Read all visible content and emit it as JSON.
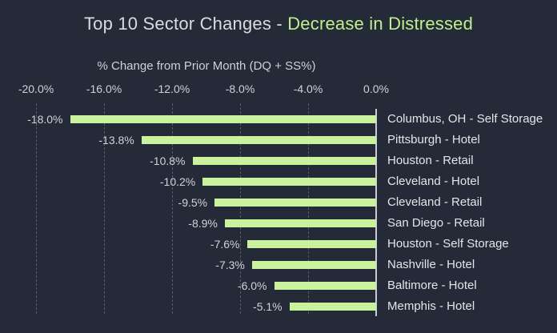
{
  "colors": {
    "background": "#242a37",
    "bar_fill": "#c9f19e",
    "title_text": "#d9dcdf",
    "title_accent": "#bff08c",
    "axis_text": "#cdd2d8",
    "category_text": "#e3e6e9",
    "gridline": "#565d69",
    "zero_axis_line": "#c9ccd1"
  },
  "title": {
    "prefix": "Top 10 Sector Changes - ",
    "accent": "Decrease in Distressed"
  },
  "chart_data": {
    "type": "bar",
    "orientation": "horizontal",
    "title": "Top 10 Sector Changes - Decrease in Distressed",
    "axis_title": "% Change from Prior Month (DQ + SS%)",
    "categories": [
      "Columbus, OH - Self Storage",
      "Pittsburgh - Hotel",
      "Houston - Retail",
      "Cleveland - Hotel",
      "Cleveland - Retail",
      "San Diego - Retail",
      "Houston - Self Storage",
      "Nashville - Hotel",
      "Baltimore - Hotel",
      "Memphis - Hotel"
    ],
    "values": [
      -18.0,
      -13.8,
      -10.8,
      -10.2,
      -9.5,
      -8.9,
      -7.6,
      -7.3,
      -6.0,
      -5.1
    ],
    "value_labels": [
      "-18.0%",
      "-13.8%",
      "-10.8%",
      "-10.2%",
      "-9.5%",
      "-8.9%",
      "-7.6%",
      "-7.3%",
      "-6.0%",
      "-5.1%"
    ],
    "xlim": [
      -20,
      0
    ],
    "ticks": [
      {
        "value": -20,
        "label": "-20.0%"
      },
      {
        "value": -16,
        "label": "-16.0%"
      },
      {
        "value": -12,
        "label": "-12.0%"
      },
      {
        "value": -8,
        "label": "-8.0%"
      },
      {
        "value": -4,
        "label": "-4.0%"
      },
      {
        "value": 0,
        "label": "0.0%"
      }
    ],
    "grid": "dashed-vertical",
    "legend": "none",
    "value_label_position": "left-of-bar",
    "category_label_position": "right-of-axis"
  }
}
